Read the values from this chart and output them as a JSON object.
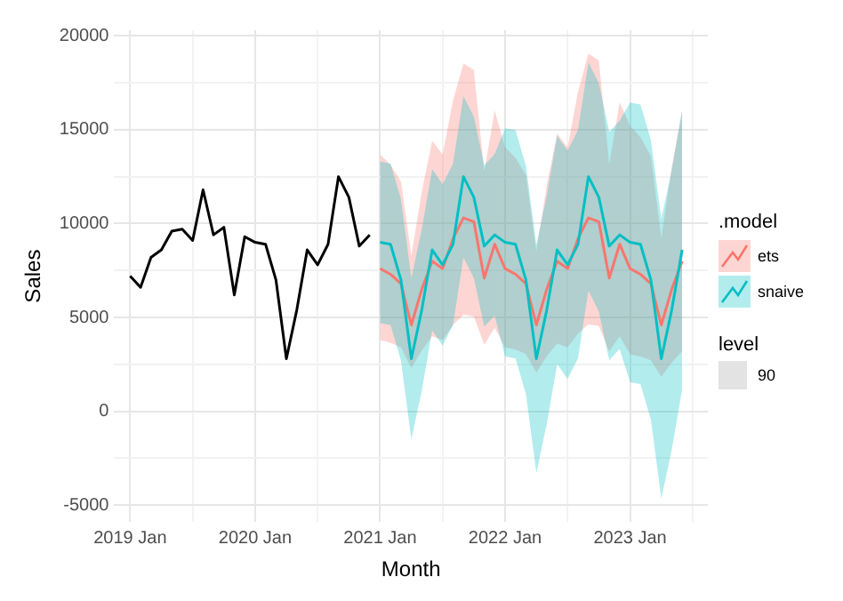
{
  "chart_data": {
    "type": "line",
    "xlabel": "Month",
    "ylabel": "Sales",
    "legend_title": ".model",
    "legend": "right",
    "grid": true,
    "marker": "none",
    "line_style": "solid",
    "xlim": [
      "2018-11-15",
      "2023-08-15"
    ],
    "xticks": [
      {
        "value": "2019-01",
        "label": "2019 Jan"
      },
      {
        "value": "2019-07",
        "label": null
      },
      {
        "value": "2020-01",
        "label": "2020 Jan"
      },
      {
        "value": "2020-07",
        "label": null
      },
      {
        "value": "2021-01",
        "label": "2021 Jan"
      },
      {
        "value": "2021-07",
        "label": null
      },
      {
        "value": "2022-01",
        "label": "2022 Jan"
      },
      {
        "value": "2022-07",
        "label": null
      },
      {
        "value": "2023-01",
        "label": "2023 Jan"
      },
      {
        "value": "2023-07",
        "label": null
      }
    ],
    "ylim": [
      -5900,
      20300
    ],
    "yticks": [
      -5000,
      {
        "value": -2500,
        "label": null
      },
      0,
      {
        "value": 2500,
        "label": null
      },
      5000,
      {
        "value": 7500,
        "label": null
      },
      10000,
      {
        "value": 12500,
        "label": null
      },
      15000,
      {
        "value": 17500,
        "label": null
      },
      20000
    ],
    "annotations": [
      "level",
      "90"
    ],
    "series": [
      {
        "color": "#000000",
        "x": [
          "2019-01",
          "2019-02",
          "2019-03",
          "2019-04",
          "2019-05",
          "2019-06",
          "2019-07",
          "2019-08",
          "2019-09",
          "2019-10",
          "2019-11",
          "2019-12",
          "2020-01",
          "2020-02",
          "2020-03",
          "2020-04",
          "2020-05",
          "2020-06",
          "2020-07",
          "2020-08",
          "2020-09",
          "2020-10",
          "2020-11",
          "2020-12"
        ],
        "values": [
          7200,
          6600,
          8200,
          8600,
          9600,
          9700,
          9100,
          11800,
          9400,
          9800,
          6200,
          9300,
          9000,
          8900,
          7000,
          2800,
          5400,
          8600,
          7800,
          8900,
          12500,
          11400,
          8800,
          9400
        ]
      },
      {
        "name": "ets",
        "color": "#f8766d",
        "x": [
          "2021-01",
          "2021-02",
          "2021-03",
          "2021-04",
          "2021-05",
          "2021-06",
          "2021-07",
          "2021-08",
          "2021-09",
          "2021-10",
          "2021-11",
          "2021-12",
          "2022-01",
          "2022-02",
          "2022-03",
          "2022-04",
          "2022-05",
          "2022-06",
          "2022-07",
          "2022-08",
          "2022-09",
          "2022-10",
          "2022-11",
          "2022-12",
          "2023-01",
          "2023-02",
          "2023-03",
          "2023-04",
          "2023-05",
          "2023-06"
        ],
        "values": [
          7600,
          7300,
          6800,
          4600,
          6500,
          8000,
          7600,
          9200,
          10300,
          10100,
          7100,
          8900,
          7600,
          7300,
          6800,
          4600,
          6500,
          8000,
          7600,
          9200,
          10300,
          10100,
          7100,
          8900,
          7600,
          7300,
          6800,
          4600,
          6500,
          8000
        ],
        "lower": [
          3800,
          3650,
          3400,
          2300,
          3250,
          4000,
          3800,
          4600,
          5150,
          5050,
          3550,
          4450,
          3420,
          3285,
          3060,
          2070,
          2925,
          3600,
          3420,
          4140,
          4635,
          4545,
          3195,
          4005,
          3040,
          2920,
          2720,
          1840,
          2600,
          3200
        ],
        "upper": [
          13680,
          13140,
          12240,
          8280,
          11700,
          14400,
          13680,
          16560,
          18540,
          18180,
          12780,
          16020,
          14060,
          13505,
          12580,
          8510,
          12025,
          14800,
          14060,
          17020,
          19055,
          18685,
          13135,
          16465,
          15200,
          14600,
          13600,
          9200,
          13000,
          16000
        ]
      },
      {
        "name": "snaive",
        "color": "#00bfc4",
        "x": [
          "2021-01",
          "2021-02",
          "2021-03",
          "2021-04",
          "2021-05",
          "2021-06",
          "2021-07",
          "2021-08",
          "2021-09",
          "2021-10",
          "2021-11",
          "2021-12",
          "2022-01",
          "2022-02",
          "2022-03",
          "2022-04",
          "2022-05",
          "2022-06",
          "2022-07",
          "2022-08",
          "2022-09",
          "2022-10",
          "2022-11",
          "2022-12",
          "2023-01",
          "2023-02",
          "2023-03",
          "2023-04",
          "2023-05",
          "2023-06"
        ],
        "values": [
          9000,
          8900,
          7000,
          2800,
          5400,
          8600,
          7800,
          8900,
          12500,
          11400,
          8800,
          9400,
          9000,
          8900,
          7000,
          2800,
          5400,
          8600,
          7800,
          8900,
          12500,
          11400,
          8800,
          9400,
          9000,
          8900,
          7000,
          2800,
          5400,
          8600
        ],
        "lower": [
          4700,
          4600,
          2700,
          -1500,
          1100,
          4300,
          3500,
          4600,
          8200,
          7100,
          4500,
          5100,
          2920,
          2820,
          920,
          -3280,
          -680,
          2520,
          1720,
          2820,
          6420,
          5320,
          2720,
          3320,
          1550,
          1450,
          -450,
          -4650,
          -2050,
          1150
        ],
        "upper": [
          13300,
          13200,
          11300,
          7100,
          9700,
          12900,
          12100,
          13200,
          16800,
          15700,
          13100,
          13700,
          15080,
          14980,
          13080,
          8880,
          11480,
          14680,
          13880,
          14980,
          18580,
          17480,
          14880,
          15480,
          16450,
          16350,
          14450,
          10250,
          12850,
          16050
        ]
      }
    ]
  }
}
